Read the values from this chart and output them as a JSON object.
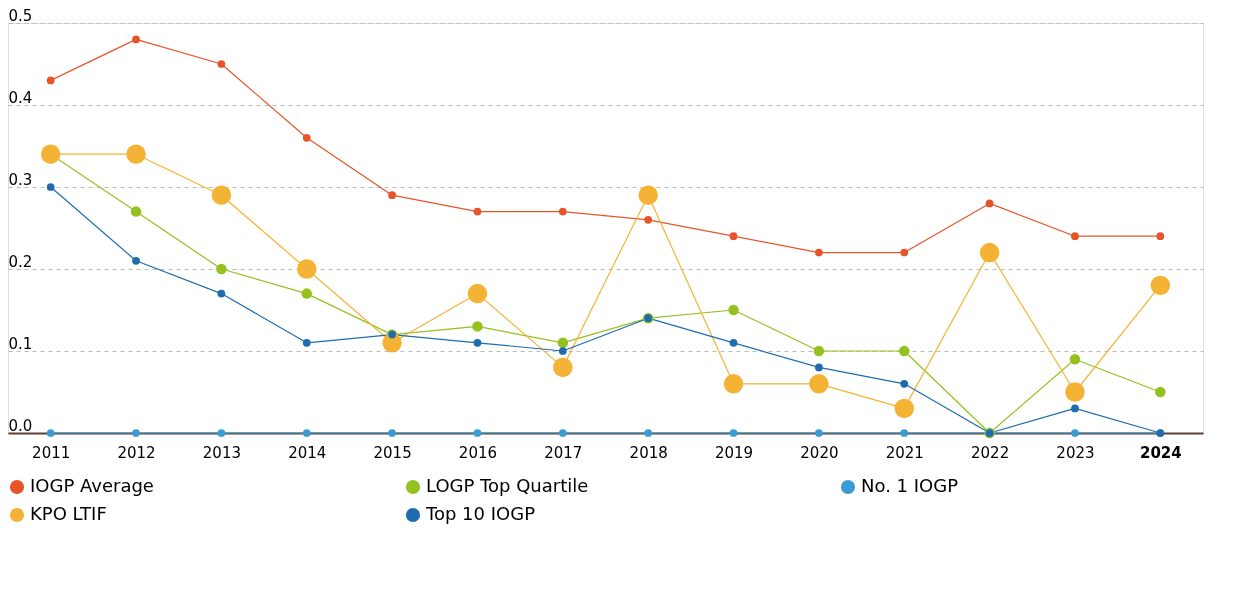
{
  "chart_data": {
    "type": "line",
    "categories": [
      "2011",
      "2012",
      "2013",
      "2014",
      "2015",
      "2016",
      "2017",
      "2018",
      "2019",
      "2020",
      "2021",
      "2022",
      "2023",
      "2024"
    ],
    "series": [
      {
        "name": "IOGP Average",
        "color": "#e8542a",
        "values": [
          0.43,
          0.48,
          0.45,
          0.36,
          0.29,
          0.27,
          0.27,
          0.26,
          0.24,
          0.22,
          0.22,
          0.28,
          0.24,
          0.24
        ]
      },
      {
        "name": "LOGP Top Quartile",
        "color": "#95c11f",
        "values": [
          0.34,
          0.27,
          0.2,
          0.17,
          0.12,
          0.13,
          0.11,
          0.14,
          0.15,
          0.1,
          0.1,
          0.0,
          0.09,
          0.05
        ]
      },
      {
        "name": "No. 1 IOGP",
        "color": "#3a9bd5",
        "values": [
          0,
          0,
          0,
          0,
          0,
          0,
          0,
          0,
          0,
          0,
          0,
          0,
          0,
          0
        ]
      },
      {
        "name": "KPO LTIF",
        "color": "#f5b335",
        "values": [
          0.34,
          0.34,
          0.29,
          0.2,
          0.11,
          0.17,
          0.08,
          0.29,
          0.06,
          0.06,
          0.03,
          0.22,
          0.05,
          0.18
        ]
      },
      {
        "name": "Top 10 IOGP",
        "color": "#1f6bb0",
        "values": [
          0.3,
          0.21,
          0.17,
          0.11,
          0.12,
          0.11,
          0.1,
          0.14,
          0.11,
          0.08,
          0.06,
          0.0,
          0.03,
          0.0
        ]
      }
    ],
    "ylim": [
      0,
      0.5
    ],
    "yticks": [
      {
        "value": 0,
        "label": "0.0"
      },
      0.1,
      0.2,
      0.3,
      0.4,
      0.5
    ],
    "grid": "y",
    "legend": "bottom",
    "marker": "circle",
    "line_style": "solid"
  }
}
